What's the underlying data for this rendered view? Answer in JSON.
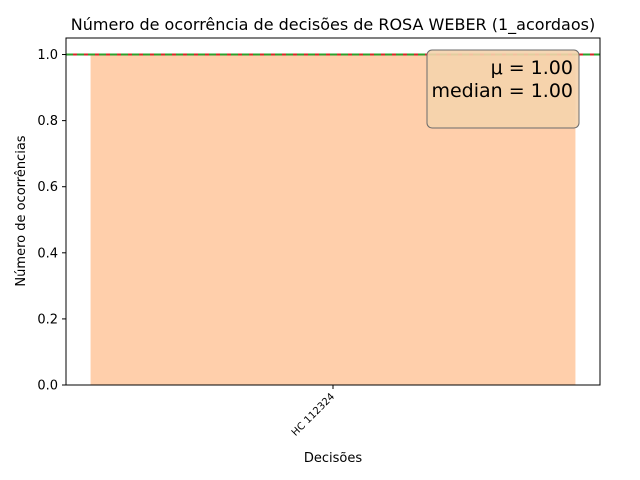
{
  "chart_data": {
    "type": "bar",
    "title": "Número de ocorrência de decisões de ROSA WEBER (1_acordaos)",
    "xlabel": "Decisões",
    "ylabel": "Número de ocorrências",
    "categories": [
      "HC 112324"
    ],
    "values": [
      1
    ],
    "ylim": [
      0,
      1.05
    ],
    "yticks": [
      "0.0",
      "0.2",
      "0.4",
      "0.6",
      "0.8",
      "1.0"
    ],
    "reference_lines": [
      {
        "kind": "mean",
        "value": 1.0,
        "color": "#d62728",
        "style": "solid"
      },
      {
        "kind": "median",
        "value": 1.0,
        "color": "#2ca02c",
        "style": "dashed"
      }
    ],
    "annotation": {
      "mean_label": "μ = 1.00",
      "median_label": "median = 1.00",
      "placement": "top-right"
    },
    "bar_color": "#ffcfab",
    "grid": false
  }
}
